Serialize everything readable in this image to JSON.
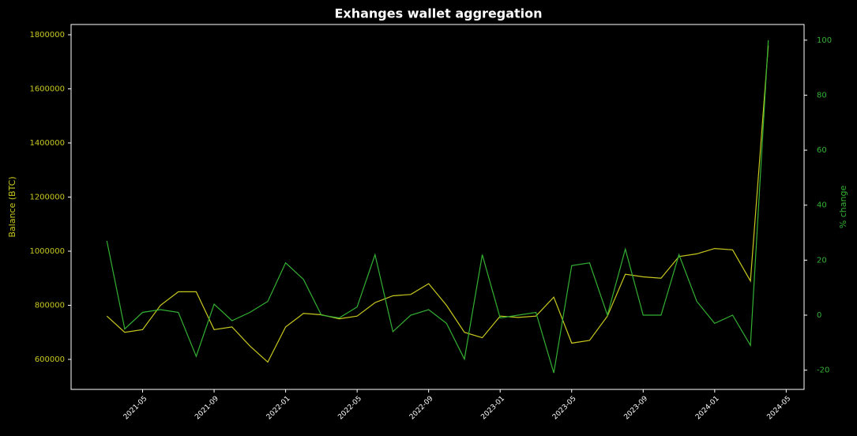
{
  "chart_data": {
    "type": "line",
    "title": "Exhanges wallet aggregation",
    "ylabel": "Balance (BTC)",
    "y2label": "% change",
    "x": [
      "2021-03",
      "2021-04",
      "2021-05",
      "2021-06",
      "2021-07",
      "2021-08",
      "2021-09",
      "2021-10",
      "2021-11",
      "2021-12",
      "2022-01",
      "2022-02",
      "2022-03",
      "2022-04",
      "2022-05",
      "2022-06",
      "2022-07",
      "2022-08",
      "2022-09",
      "2022-10",
      "2022-11",
      "2022-12",
      "2023-01",
      "2023-02",
      "2023-03",
      "2023-04",
      "2023-05",
      "2023-06",
      "2023-07",
      "2023-08",
      "2023-09",
      "2023-10",
      "2023-11",
      "2023-12",
      "2024-01",
      "2024-02",
      "2024-03",
      "2024-04"
    ],
    "series": [
      {
        "name": "Balance (BTC)",
        "color": "#c8c81e",
        "axis": "y",
        "values": [
          760000,
          700000,
          710000,
          800000,
          850000,
          850000,
          710000,
          720000,
          650000,
          590000,
          720000,
          770000,
          765000,
          750000,
          760000,
          810000,
          835000,
          840000,
          880000,
          800000,
          700000,
          680000,
          760000,
          755000,
          760000,
          830000,
          660000,
          670000,
          760000,
          915000,
          905000,
          900000,
          980000,
          990000,
          1010000,
          1005000,
          890000,
          1760000
        ]
      },
      {
        "name": "% change",
        "color": "#33b033",
        "axis": "y2",
        "values": [
          27,
          -5,
          1,
          2,
          1,
          -15,
          4,
          -2,
          1,
          5,
          19,
          13,
          0,
          -1,
          3,
          22,
          -6,
          0,
          2,
          -3,
          -16,
          22,
          -1,
          0,
          1,
          -21,
          18,
          19,
          0,
          24,
          0,
          0,
          22,
          5,
          -3,
          0,
          -11,
          100
        ]
      }
    ],
    "xlim": [
      "2021-01",
      "2024-06"
    ],
    "xticks": [
      "2021-05",
      "2021-09",
      "2022-01",
      "2022-05",
      "2022-09",
      "2023-01",
      "2023-05",
      "2023-09",
      "2024-01",
      "2024-05"
    ],
    "ylim": [
      489000,
      1838000
    ],
    "yticks": [
      600000,
      800000,
      1000000,
      1200000,
      1400000,
      1600000,
      1800000
    ],
    "y2lim": [
      -27,
      105.7
    ],
    "y2ticks": [
      -20,
      0,
      20,
      40,
      60,
      80,
      100
    ],
    "grid": false
  }
}
